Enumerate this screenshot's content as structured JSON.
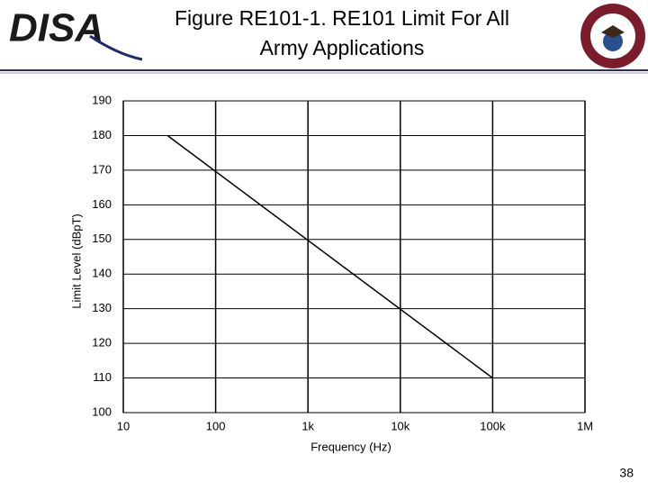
{
  "logo": "DISA",
  "page_number": "38",
  "chart_data": {
    "type": "line",
    "title": "Figure RE101-1. RE101 Limit For All Army Applications",
    "x_label": "Frequency (Hz)",
    "y_label": "Limit Level (dBpT)",
    "x_scale": "log",
    "x": [
      30,
      100000
    ],
    "series": [
      {
        "color": "#000000",
        "values": [
          180,
          110
        ]
      }
    ],
    "xlim": [
      10,
      1000000
    ],
    "xticks": [
      10,
      100,
      {
        "value": 1000,
        "label": "1k"
      },
      {
        "value": 10000,
        "label": "10k"
      },
      {
        "value": 100000,
        "label": "100k"
      },
      {
        "value": 1000000,
        "label": "1M"
      }
    ],
    "ylim": [
      100,
      190
    ],
    "yticks": [
      100,
      110,
      120,
      130,
      140,
      150,
      160,
      170,
      180,
      190
    ],
    "grid": true
  }
}
